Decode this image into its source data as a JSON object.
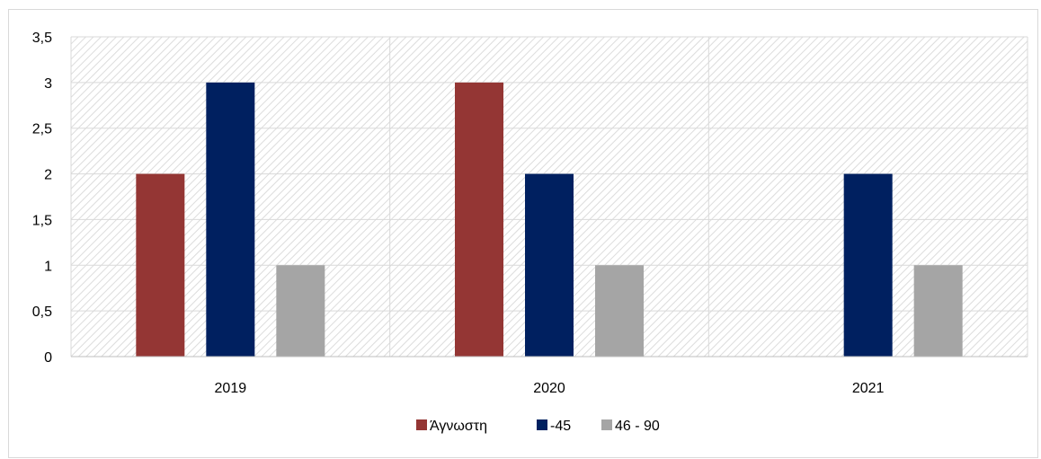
{
  "chart_data": {
    "type": "bar",
    "categories": [
      "2019",
      "2020",
      "2021"
    ],
    "series": [
      {
        "name": "Άγνωστη",
        "color": "#943634",
        "values": [
          2,
          3,
          0
        ]
      },
      {
        "name": "-45",
        "color": "#002060",
        "values": [
          3,
          2,
          2
        ]
      },
      {
        "name": "46 - 90",
        "color": "#a5a5a5",
        "values": [
          1,
          1,
          1
        ]
      }
    ],
    "yticks": [
      "0",
      "0,5",
      "1",
      "1,5",
      "2",
      "2,5",
      "3",
      "3,5"
    ],
    "ylim": [
      0,
      3.5
    ],
    "grid": true,
    "legend_position": "bottom",
    "title": "",
    "xlabel": "",
    "ylabel": ""
  }
}
